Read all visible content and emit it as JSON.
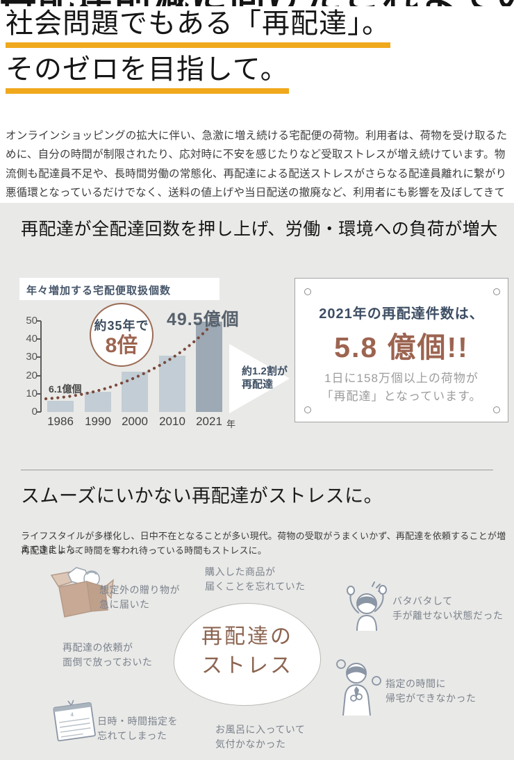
{
  "page": {
    "accent_underline": "#F0A81C",
    "top_clipped_text": "再配達削減に向けたこれまでの取り組み",
    "title_line1": "社会問題でもある「再配達」。",
    "title_line2": "そのゼロを目指して。",
    "intro": "オンラインショッピングの拡大に伴い、急激に増え続ける宅配便の荷物。利用者は、荷物を受け取るために、自分の時間が制限されたり、応対時に不安を感じたりなど受取ストレスが増え続けています。物流側も配達員不足や、長時間労働の常態化、再配達による配送ストレスがさらなる配達員離れに繋がり悪循環となっているだけでなく、送料の値上げや当日配送の撤廃など、利用者にも影響を及ぼしてきています。"
  },
  "section_load": {
    "heading": "再配達が全配達回数を押し上げ、労働・環境への負荷が増大",
    "chart_title": "年々増加する宅配便取扱個数",
    "badge_line1": "約35年で",
    "badge_line2": "8倍",
    "label_first_bar": "6.1億個",
    "label_last_bar": "49.5億個",
    "arrow_line1": "約1.2割が",
    "arrow_line2": "再配達",
    "x_unit": "年",
    "stat_card": {
      "heading": "2021年の再配達件数は、",
      "value": "5.8 億個!!",
      "desc_line1": "1日に158万個以上の荷物が",
      "desc_line2": "「再配達」となっています。"
    }
  },
  "chart_data": {
    "type": "bar",
    "title": "年々増加する宅配便取扱個数",
    "categories": [
      "1986",
      "1990",
      "2000",
      "2010",
      "2021"
    ],
    "values": [
      6.1,
      11,
      22,
      31,
      49.5
    ],
    "unit": "億個",
    "xlabel": "年",
    "ylabel": "",
    "ylim": [
      0,
      50
    ],
    "yticks": [
      0,
      10,
      20,
      30,
      40,
      50
    ],
    "grid": false,
    "bar_color": "#C2CDD5",
    "last_bar_color": "#9DA9B4",
    "annotations": [
      "約35年で8倍",
      "6.1億個",
      "49.5億個",
      "約1.2割が再配達"
    ]
  },
  "section_stress": {
    "heading": "スムーズにいかない再配達がストレスに。",
    "para_line1": "ライフスタイルが多様化し、日中不在となることが多い現代。荷物の受取がうまくいかず、再配達を依頼することが増えてきました。",
    "para_line2": "再配達によって時間を奪われ待っている時間もストレスに。",
    "bubble_line1": "再配達の",
    "bubble_line2": "ストレス",
    "items": [
      {
        "line1": "想定外の贈り物が",
        "line2": "急に届いた"
      },
      {
        "line1": "購入した商品が",
        "line2": "届くことを忘れていた"
      },
      {
        "line1": "再配達の依頼が",
        "line2": "面倒で放っておいた"
      },
      {
        "line1": "バタバタして",
        "line2": "手が離せない状態だった"
      },
      {
        "line1": "指定の時間に",
        "line2": "帰宅ができなかった"
      },
      {
        "line1": "日時・時間指定を",
        "line2": "忘れてしまった"
      },
      {
        "line1": "お風呂に入っていて",
        "line2": "気付かなかった"
      }
    ]
  },
  "colors": {
    "gray_section_bg": "#E9E9E7",
    "navy_text": "#3D4E63",
    "brown_accent": "#9C6450",
    "dotted_curve": "#7A4A3C",
    "muted_label": "#7B828C"
  }
}
